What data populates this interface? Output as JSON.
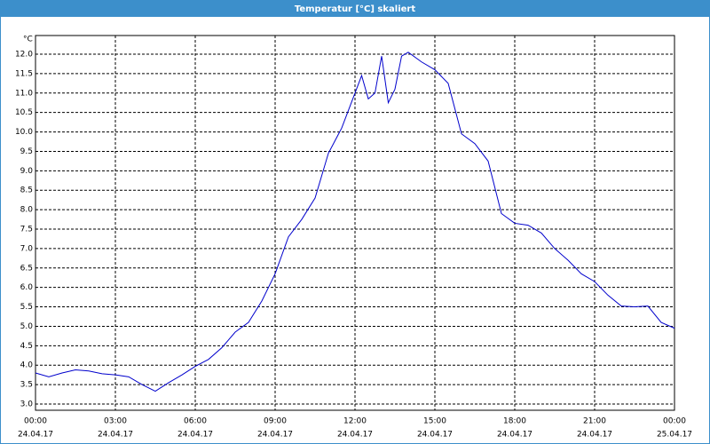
{
  "chart_data": {
    "type": "line",
    "title": "Temperatur [°C] skaliert",
    "y_label": "°C",
    "x": [
      0,
      0.5,
      1,
      1.5,
      2,
      2.5,
      3,
      3.5,
      4,
      4.5,
      5,
      5.5,
      6,
      6.5,
      7,
      7.5,
      8,
      8.5,
      9,
      9.5,
      10,
      10.5,
      11,
      11.5,
      12,
      12.25,
      12.5,
      12.75,
      13,
      13.25,
      13.5,
      13.75,
      14,
      14.5,
      15,
      15.5,
      16,
      16.5,
      17,
      17.5,
      18,
      18.5,
      19,
      19.5,
      20,
      20.5,
      21,
      21.5,
      22,
      22.5,
      23,
      23.5,
      24
    ],
    "series": [
      {
        "name": "Temperatur",
        "color": "#0000cc",
        "values": [
          3.8,
          3.7,
          3.8,
          3.88,
          3.85,
          3.78,
          3.75,
          3.7,
          3.5,
          3.33,
          3.55,
          3.75,
          3.97,
          4.15,
          4.45,
          4.85,
          5.1,
          5.65,
          6.35,
          7.3,
          7.75,
          8.3,
          9.45,
          10.1,
          11.0,
          11.45,
          10.85,
          11.0,
          11.95,
          10.75,
          11.1,
          11.95,
          12.05,
          11.8,
          11.6,
          11.25,
          9.95,
          9.7,
          9.25,
          7.9,
          7.65,
          7.6,
          7.4,
          7.0,
          6.7,
          6.35,
          6.15,
          5.8,
          5.52,
          5.5,
          5.52,
          5.1,
          4.95
        ]
      }
    ],
    "xlim": [
      0,
      24
    ],
    "xticks": [
      {
        "value": 0,
        "label": "00:00"
      },
      {
        "value": 3,
        "label": "03:00"
      },
      {
        "value": 6,
        "label": "06:00"
      },
      {
        "value": 9,
        "label": "09:00"
      },
      {
        "value": 12,
        "label": "12:00"
      },
      {
        "value": 15,
        "label": "15:00"
      },
      {
        "value": 18,
        "label": "18:00"
      },
      {
        "value": 21,
        "label": "21:00"
      },
      {
        "value": 24,
        "label": "00:00"
      }
    ],
    "xtick_dates": [
      "24.04.17",
      "24.04.17",
      "24.04.17",
      "24.04.17",
      "24.04.17",
      "24.04.17",
      "24.04.17",
      "24.04.17",
      "25.04.17"
    ],
    "ylim": [
      2.84,
      12.48
    ],
    "yticks": [
      {
        "value": 3,
        "label": "3.0"
      },
      {
        "value": 3.5,
        "label": "3.5"
      },
      {
        "value": 4,
        "label": "4.0"
      },
      {
        "value": 4.5,
        "label": "4.5"
      },
      {
        "value": 5,
        "label": "5.0"
      },
      {
        "value": 5.5,
        "label": "5.5"
      },
      {
        "value": 6,
        "label": "6.0"
      },
      {
        "value": 6.5,
        "label": "6.5"
      },
      {
        "value": 7,
        "label": "7.0"
      },
      {
        "value": 7.5,
        "label": "7.5"
      },
      {
        "value": 8,
        "label": "8.0"
      },
      {
        "value": 8.5,
        "label": "8.5"
      },
      {
        "value": 9,
        "label": "9.0"
      },
      {
        "value": 9.5,
        "label": "9.5"
      },
      {
        "value": 10,
        "label": "10.0"
      },
      {
        "value": 10.5,
        "label": "10.5"
      },
      {
        "value": 11,
        "label": "11.0"
      },
      {
        "value": 11.5,
        "label": "11.5"
      },
      {
        "value": 12,
        "label": "12.0"
      }
    ],
    "grid": true
  }
}
